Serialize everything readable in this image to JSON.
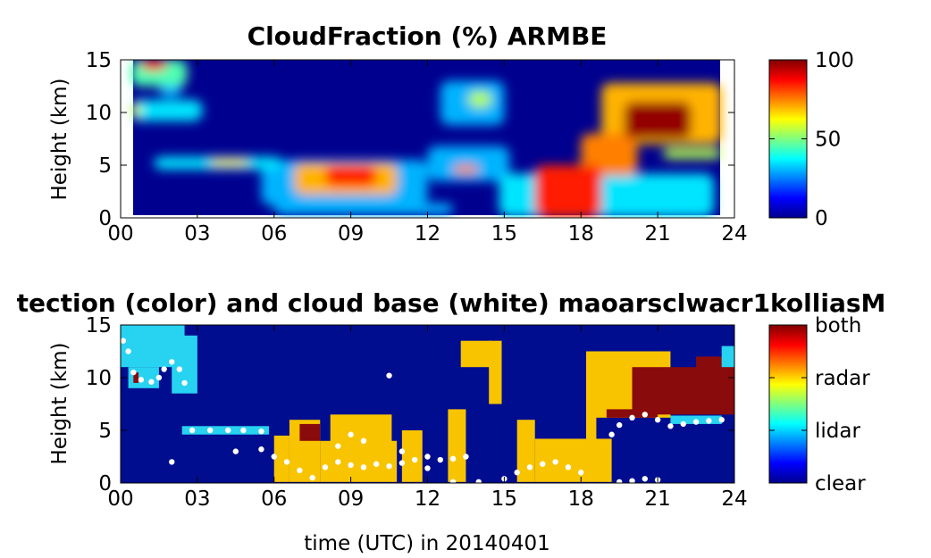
{
  "chart_data": [
    {
      "type": "heatmap",
      "title": "CloudFraction  (%) ARMBE",
      "ylabel": "Height (km)",
      "xlabel": "",
      "x_ticks": [
        "00",
        "03",
        "06",
        "09",
        "12",
        "15",
        "18",
        "21",
        "24"
      ],
      "y_ticks": [
        "0",
        "5",
        "10",
        "15"
      ],
      "xlim": [
        0,
        24
      ],
      "ylim": [
        0,
        15
      ],
      "colorbar": {
        "ticks": [
          "0",
          "50",
          "100"
        ],
        "range": [
          0,
          100
        ],
        "colormap": "jet"
      },
      "background_value": 0,
      "cloud_regions": [
        {
          "t0": 0.4,
          "t1": 2.6,
          "h0": 12.5,
          "h1": 15,
          "value": 45
        },
        {
          "t0": 0.8,
          "t1": 1.8,
          "h0": 14,
          "h1": 15,
          "value": 85
        },
        {
          "t0": 0.4,
          "t1": 3.2,
          "h0": 9.2,
          "h1": 11.2,
          "value": 35
        },
        {
          "t0": 0.4,
          "t1": 0.8,
          "h0": 9.6,
          "h1": 10.8,
          "value": 60
        },
        {
          "t0": 1.3,
          "t1": 2.4,
          "h0": 9.4,
          "h1": 10.2,
          "value": 30
        },
        {
          "t0": 1.5,
          "t1": 2.4,
          "h0": 11.5,
          "h1": 13.0,
          "value": 30
        },
        {
          "t0": 1.3,
          "t1": 6.3,
          "h0": 4.6,
          "h1": 5.8,
          "value": 35
        },
        {
          "t0": 3.5,
          "t1": 5.0,
          "h0": 4.9,
          "h1": 5.6,
          "value": 65
        },
        {
          "t0": 5.5,
          "t1": 12.0,
          "h0": 1.2,
          "h1": 5.5,
          "value": 30
        },
        {
          "t0": 6.8,
          "t1": 10.8,
          "h0": 2.2,
          "h1": 5.2,
          "value": 70
        },
        {
          "t0": 8.0,
          "t1": 10.0,
          "h0": 3.0,
          "h1": 5.0,
          "value": 85
        },
        {
          "t0": 12.0,
          "t1": 15.2,
          "h0": 3.5,
          "h1": 6.8,
          "value": 30
        },
        {
          "t0": 13.0,
          "t1": 14.0,
          "h0": 4.2,
          "h1": 5.0,
          "value": 75
        },
        {
          "t0": 12.5,
          "t1": 15.0,
          "h0": 8.8,
          "h1": 13.0,
          "value": 30
        },
        {
          "t0": 13.6,
          "t1": 14.5,
          "h0": 10.5,
          "h1": 12.0,
          "value": 55
        },
        {
          "t0": 6.0,
          "t1": 13.0,
          "h0": 0.3,
          "h1": 1.4,
          "value": 30
        },
        {
          "t0": 14.8,
          "t1": 23.2,
          "h0": 0.1,
          "h1": 4.2,
          "value": 35
        },
        {
          "t0": 16.2,
          "t1": 18.8,
          "h0": 0.1,
          "h1": 5.0,
          "value": 85
        },
        {
          "t0": 18.0,
          "t1": 20.2,
          "h0": 4.0,
          "h1": 8.0,
          "value": 75
        },
        {
          "t0": 18.8,
          "t1": 23.5,
          "h0": 7.0,
          "h1": 12.8,
          "value": 70
        },
        {
          "t0": 19.7,
          "t1": 22.3,
          "h0": 7.5,
          "h1": 11.0,
          "value": 98
        },
        {
          "t0": 21.2,
          "t1": 23.5,
          "h0": 5.6,
          "h1": 6.6,
          "value": 55
        }
      ]
    },
    {
      "type": "heatmap",
      "title": "tection (color) and cloud base (white) maoarsclwacr1kolliasM",
      "ylabel": "Height (km)",
      "xlabel": "time (UTC) in 20140401",
      "x_ticks": [
        "00",
        "03",
        "06",
        "09",
        "12",
        "15",
        "18",
        "21",
        "24"
      ],
      "y_ticks": [
        "0",
        "5",
        "10",
        "15"
      ],
      "xlim": [
        0,
        24
      ],
      "ylim": [
        0,
        15
      ],
      "colorbar": {
        "ticks": [
          "clear",
          "lidar",
          "radar",
          "both"
        ],
        "colormap": "jet"
      },
      "category_colors": {
        "clear": "#000d8f",
        "lidar": "#27d3f0",
        "radar": "#f8c400",
        "both": "#8a0b0b"
      },
      "detections": [
        {
          "t0": 0.0,
          "t1": 2.5,
          "h0": 11.0,
          "h1": 15.0,
          "cat": "lidar"
        },
        {
          "t0": 0.3,
          "t1": 1.5,
          "h0": 9.0,
          "h1": 11.0,
          "cat": "lidar"
        },
        {
          "t0": 0.5,
          "t1": 0.7,
          "h0": 9.5,
          "h1": 10.5,
          "cat": "both"
        },
        {
          "t0": 2.0,
          "t1": 3.0,
          "h0": 8.5,
          "h1": 14.0,
          "cat": "lidar"
        },
        {
          "t0": 2.4,
          "t1": 5.8,
          "h0": 4.6,
          "h1": 5.4,
          "cat": "lidar"
        },
        {
          "t0": 6.0,
          "t1": 6.6,
          "h0": 0.1,
          "h1": 4.5,
          "cat": "radar"
        },
        {
          "t0": 6.6,
          "t1": 7.8,
          "h0": 0.1,
          "h1": 6.0,
          "cat": "radar"
        },
        {
          "t0": 7.0,
          "t1": 7.8,
          "h0": 4.0,
          "h1": 5.6,
          "cat": "both"
        },
        {
          "t0": 7.8,
          "t1": 10.8,
          "h0": 0.1,
          "h1": 4.0,
          "cat": "radar"
        },
        {
          "t0": 8.2,
          "t1": 10.6,
          "h0": 3.5,
          "h1": 6.5,
          "cat": "radar"
        },
        {
          "t0": 11.0,
          "t1": 11.8,
          "h0": 0.1,
          "h1": 5.0,
          "cat": "radar"
        },
        {
          "t0": 12.8,
          "t1": 13.5,
          "h0": 0.1,
          "h1": 7.0,
          "cat": "radar"
        },
        {
          "t0": 13.3,
          "t1": 14.5,
          "h0": 11.0,
          "h1": 13.5,
          "cat": "radar"
        },
        {
          "t0": 14.4,
          "t1": 14.9,
          "h0": 7.5,
          "h1": 13.5,
          "cat": "radar"
        },
        {
          "t0": 15.5,
          "t1": 16.2,
          "h0": 0.1,
          "h1": 6.0,
          "cat": "radar"
        },
        {
          "t0": 16.2,
          "t1": 19.2,
          "h0": 0.1,
          "h1": 4.2,
          "cat": "radar"
        },
        {
          "t0": 18.2,
          "t1": 18.6,
          "h0": 4.0,
          "h1": 6.5,
          "cat": "radar"
        },
        {
          "t0": 18.2,
          "t1": 21.5,
          "h0": 6.2,
          "h1": 12.5,
          "cat": "radar"
        },
        {
          "t0": 19.0,
          "t1": 21.0,
          "h0": 6.2,
          "h1": 7.0,
          "cat": "both"
        },
        {
          "t0": 20.0,
          "t1": 24.0,
          "h0": 6.5,
          "h1": 11.0,
          "cat": "both"
        },
        {
          "t0": 22.5,
          "t1": 24.0,
          "h0": 10.0,
          "h1": 12.0,
          "cat": "both"
        },
        {
          "t0": 23.5,
          "t1": 24.0,
          "h0": 11.0,
          "h1": 13.0,
          "cat": "lidar"
        },
        {
          "t0": 21.5,
          "t1": 23.5,
          "h0": 5.6,
          "h1": 6.4,
          "cat": "lidar"
        }
      ],
      "cloud_base": [
        [
          0.1,
          13.5
        ],
        [
          0.3,
          12.5
        ],
        [
          0.5,
          10.5
        ],
        [
          0.8,
          9.8
        ],
        [
          1.2,
          9.6
        ],
        [
          1.5,
          10.0
        ],
        [
          1.7,
          10.8
        ],
        [
          2.0,
          11.5
        ],
        [
          2.3,
          10.8
        ],
        [
          2.5,
          9.5
        ],
        [
          2.8,
          5.0
        ],
        [
          3.5,
          5.0
        ],
        [
          4.2,
          5.0
        ],
        [
          4.8,
          5.0
        ],
        [
          5.5,
          4.9
        ],
        [
          2.0,
          2.0
        ],
        [
          4.5,
          3.0
        ],
        [
          5.5,
          3.2
        ],
        [
          6.0,
          2.5
        ],
        [
          6.5,
          2.0
        ],
        [
          7.0,
          1.2
        ],
        [
          7.5,
          0.5
        ],
        [
          8.0,
          1.5
        ],
        [
          8.5,
          2.0
        ],
        [
          9.0,
          1.7
        ],
        [
          9.5,
          1.5
        ],
        [
          10.0,
          1.8
        ],
        [
          10.5,
          1.6
        ],
        [
          11.0,
          1.9
        ],
        [
          11.5,
          2.2
        ],
        [
          12.0,
          2.5
        ],
        [
          12.5,
          2.2
        ],
        [
          13.0,
          2.3
        ],
        [
          13.5,
          2.5
        ],
        [
          13.0,
          0.1
        ],
        [
          14.0,
          0.1
        ],
        [
          15.0,
          0.4
        ],
        [
          15.5,
          1.0
        ],
        [
          16.0,
          1.5
        ],
        [
          16.5,
          1.8
        ],
        [
          17.0,
          2.0
        ],
        [
          17.5,
          1.5
        ],
        [
          18.0,
          1.0
        ],
        [
          19.5,
          0.1
        ],
        [
          20.0,
          0.2
        ],
        [
          20.5,
          0.4
        ],
        [
          21.0,
          0.3
        ],
        [
          19.2,
          4.6
        ],
        [
          19.5,
          5.5
        ],
        [
          20.0,
          6.2
        ],
        [
          20.5,
          6.5
        ],
        [
          21.0,
          6.0
        ],
        [
          21.5,
          5.4
        ],
        [
          22.0,
          5.6
        ],
        [
          22.5,
          5.8
        ],
        [
          23.0,
          5.9
        ],
        [
          23.5,
          6.0
        ],
        [
          10.5,
          10.2
        ],
        [
          9.0,
          4.6
        ],
        [
          9.5,
          4.0
        ],
        [
          8.5,
          3.5
        ],
        [
          11.0,
          3.0
        ],
        [
          12.0,
          1.4
        ]
      ]
    }
  ]
}
